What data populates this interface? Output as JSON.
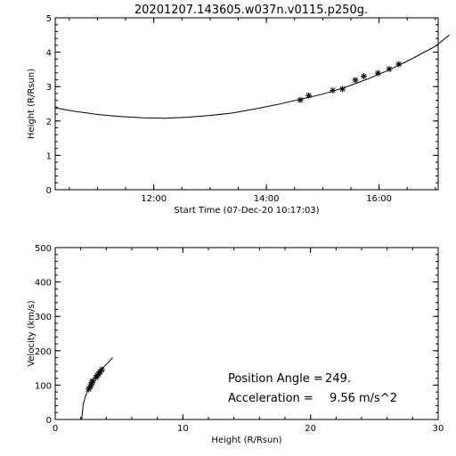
{
  "title": "20201207.143605.w037n.v0115.p250g.",
  "chart_data": [
    {
      "type": "scatter",
      "xlabel": "Start Time (07-Dec-20 10:17:03)",
      "ylabel": "Height (R/Rsun)",
      "x_unit": "hours",
      "xlim": [
        10.25,
        17.05
      ],
      "ylim": [
        0,
        5
      ],
      "xticks": [
        {
          "value": 12,
          "label": "12:00"
        },
        {
          "value": 14,
          "label": "14:00"
        },
        {
          "value": 16,
          "label": "16:00"
        }
      ],
      "yticks": [
        {
          "value": 0,
          "label": "0"
        },
        {
          "value": 1,
          "label": "1"
        },
        {
          "value": 2,
          "label": "2"
        },
        {
          "value": 3,
          "label": "3"
        },
        {
          "value": 4,
          "label": "4"
        },
        {
          "value": 5,
          "label": "5"
        }
      ],
      "points": {
        "x": [
          14.6,
          14.75,
          15.18,
          15.35,
          15.58,
          15.73,
          15.98,
          16.18,
          16.35
        ],
        "y": [
          2.61,
          2.74,
          2.89,
          2.93,
          3.19,
          3.3,
          3.39,
          3.51,
          3.65
        ]
      },
      "fit_curve": {
        "x": [
          10.25,
          10.6,
          11.0,
          11.4,
          11.8,
          12.2,
          12.6,
          13.0,
          13.4,
          13.8,
          14.2,
          14.6,
          15.0,
          15.4,
          15.8,
          16.2,
          16.6,
          17.0,
          17.25
        ],
        "y": [
          2.38,
          2.28,
          2.19,
          2.13,
          2.09,
          2.08,
          2.11,
          2.16,
          2.23,
          2.35,
          2.48,
          2.63,
          2.78,
          2.98,
          3.22,
          3.5,
          3.82,
          4.17,
          4.5
        ]
      }
    },
    {
      "type": "scatter",
      "xlabel": "Height (R/Rsun)",
      "ylabel": "Velocity (km/s)",
      "xlim": [
        0,
        30
      ],
      "ylim": [
        0,
        500
      ],
      "xticks": [
        {
          "value": 0,
          "label": "0"
        },
        {
          "value": 10,
          "label": "10"
        },
        {
          "value": 20,
          "label": "20"
        },
        {
          "value": 30,
          "label": "30"
        }
      ],
      "yticks": [
        {
          "value": 0,
          "label": "0"
        },
        {
          "value": 100,
          "label": "100"
        },
        {
          "value": 200,
          "label": "200"
        },
        {
          "value": 300,
          "label": "300"
        },
        {
          "value": 400,
          "label": "400"
        },
        {
          "value": 500,
          "label": "500"
        }
      ],
      "points": {
        "x": [
          2.61,
          2.74,
          2.89,
          2.93,
          3.19,
          3.3,
          3.39,
          3.51,
          3.65,
          2.8
        ],
        "y": [
          88,
          95,
          108,
          112,
          122,
          128,
          132,
          138,
          145,
          100
        ]
      },
      "fit_curve": {
        "x": [
          2.08,
          2.12,
          2.2,
          2.35,
          2.55,
          2.8,
          3.1,
          3.45,
          3.85,
          4.2,
          4.5
        ],
        "y": [
          0,
          20,
          45,
          65,
          85,
          100,
          120,
          138,
          155,
          168,
          180
        ]
      },
      "annotations": [
        {
          "label": "Position Angle =",
          "value": "249."
        },
        {
          "label": "Acceleration =",
          "value": "9.56  m/s^2"
        }
      ]
    }
  ]
}
